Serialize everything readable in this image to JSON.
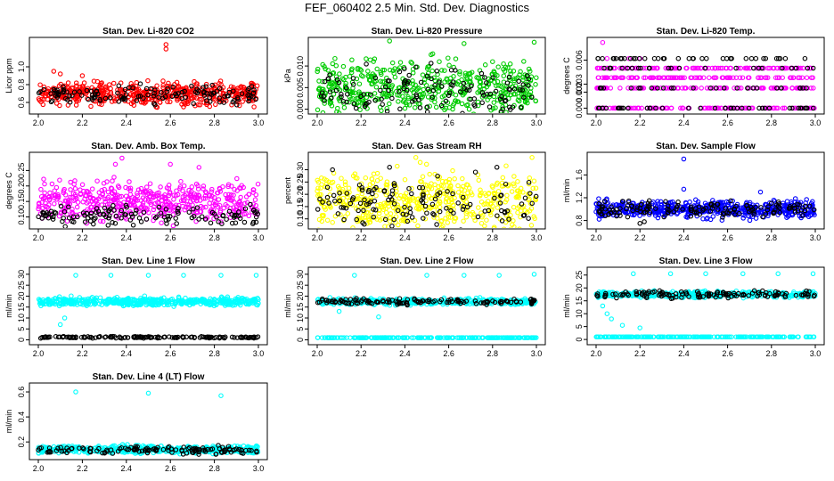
{
  "figure_title": "FEF_060402  2.5 Min. Std. Dev. Diagnostics",
  "colors": {
    "red": "#ff0000",
    "green": "#00cc00",
    "magenta": "#ff00ff",
    "yellow": "#ffff00",
    "blue": "#0000ff",
    "cyan": "#00ffff",
    "black": "#000000"
  },
  "chart_data": [
    {
      "type": "scatter",
      "title": "Stan. Dev. Li-820 CO2",
      "ylabel": "Licor ppm",
      "xlim": [
        2.0,
        3.0
      ],
      "ylim": [
        0.5,
        1.3
      ],
      "xticks": [
        "2.0",
        "2.2",
        "2.4",
        "2.6",
        "2.8",
        "3.0"
      ],
      "yticks": [
        {
          "v": 0.6,
          "t": "0.6"
        },
        {
          "v": 0.8,
          "t": "0.8"
        },
        {
          "v": 1.0,
          "t": "1.0"
        }
      ],
      "series": [
        {
          "color": "red",
          "base": 0.7,
          "spread": 0.06,
          "n": 500,
          "outliers": [
            [
              2.58,
              1.25
            ],
            [
              2.58,
              1.2
            ],
            [
              2.07,
              0.95
            ],
            [
              2.1,
              0.92
            ],
            [
              2.2,
              0.9
            ],
            [
              2.98,
              0.55
            ],
            [
              2.66,
              0.55
            ]
          ]
        },
        {
          "color": "black",
          "base": 0.68,
          "spread": 0.05,
          "n": 130,
          "outliers": [
            [
              2.97,
              0.78
            ],
            [
              2.98,
              0.74
            ]
          ]
        }
      ]
    },
    {
      "type": "scatter",
      "title": "Stan. Dev. Li-820 Pressure",
      "ylabel": "kPa",
      "xlim": [
        2.0,
        3.0
      ],
      "ylim": [
        -0.0005,
        0.016
      ],
      "xticks": [
        "2.0",
        "2.2",
        "2.4",
        "2.6",
        "2.8",
        "3.0"
      ],
      "yticks": [
        {
          "v": 0.0,
          "t": "0.000"
        },
        {
          "v": 0.005,
          "t": "0.005"
        },
        {
          "v": 0.01,
          "t": "0.010"
        }
      ],
      "series": [
        {
          "color": "green",
          "base": 0.005,
          "spread": 0.003,
          "n": 500,
          "outliers": [
            [
              2.33,
              0.0158
            ],
            [
              2.67,
              0.0152
            ],
            [
              2.99,
              0.0155
            ],
            [
              2.8,
              0.011
            ],
            [
              2.85,
              0.0105
            ]
          ]
        },
        {
          "color": "black",
          "base": 0.004,
          "spread": 0.003,
          "n": 130,
          "outliers": []
        }
      ]
    },
    {
      "type": "scatter",
      "title": "Stan. Dev. Li-820 Temp.",
      "ylabel": "degrees C",
      "xlim": [
        2.0,
        3.0
      ],
      "ylim": [
        -0.0004,
        0.0085
      ],
      "xticks": [
        "2.0",
        "2.2",
        "2.4",
        "2.6",
        "2.8",
        "3.0"
      ],
      "yticks": [
        {
          "v": 0.0,
          "t": "0.000"
        },
        {
          "v": 0.002,
          "t": "0.002"
        },
        {
          "v": 0.003,
          "t": "0.003"
        },
        {
          "v": 0.006,
          "t": "0.006"
        }
      ],
      "levels": true,
      "series": [
        {
          "color": "magenta",
          "levels": [
            0.0,
            0.0025,
            0.0038,
            0.005
          ],
          "n": 420,
          "outliers": [
            [
              2.03,
              0.0082
            ],
            [
              2.05,
              0.0062
            ],
            [
              2.15,
              0.0062
            ],
            [
              2.2,
              0.0062
            ]
          ]
        },
        {
          "color": "black",
          "levels": [
            0.0,
            0.0025,
            0.005,
            0.0062
          ],
          "n": 130,
          "outliers": []
        }
      ]
    },
    {
      "type": "scatter",
      "title": "Stan. Dev. Amb. Box Temp.",
      "ylabel": "degrees C",
      "xlim": [
        2.0,
        3.0
      ],
      "ylim": [
        0.07,
        0.3
      ],
      "xticks": [
        "2.0",
        "2.2",
        "2.4",
        "2.6",
        "2.8",
        "3.0"
      ],
      "yticks": [
        {
          "v": 0.1,
          "t": "0.10"
        },
        {
          "v": 0.15,
          "t": "0.15"
        },
        {
          "v": 0.2,
          "t": "0.20"
        },
        {
          "v": 0.25,
          "t": "0.25"
        }
      ],
      "series": [
        {
          "color": "magenta",
          "base": 0.15,
          "spread": 0.03,
          "n": 500,
          "outliers": [
            [
              2.38,
              0.29
            ],
            [
              2.35,
              0.27
            ],
            [
              2.6,
              0.27
            ],
            [
              2.73,
              0.26
            ]
          ]
        },
        {
          "color": "black",
          "base": 0.105,
          "spread": 0.015,
          "n": 130,
          "outliers": []
        }
      ]
    },
    {
      "type": "scatter",
      "title": "Stan. Dev. Gas Stream RH",
      "ylabel": "percent",
      "xlim": [
        2.0,
        3.0
      ],
      "ylim": [
        0.07,
        0.36
      ],
      "xticks": [
        "2.0",
        "2.2",
        "2.4",
        "2.6",
        "2.8",
        "3.0"
      ],
      "yticks": [
        {
          "v": 0.1,
          "t": "0.10"
        },
        {
          "v": 0.15,
          "t": "0.15"
        },
        {
          "v": 0.2,
          "t": "0.20"
        },
        {
          "v": 0.25,
          "t": "0.25"
        },
        {
          "v": 0.3,
          "t": "0.30"
        }
      ],
      "series": [
        {
          "color": "yellow",
          "base": 0.17,
          "spread": 0.06,
          "n": 500,
          "outliers": [
            [
              2.45,
              0.35
            ],
            [
              2.98,
              0.35
            ],
            [
              2.47,
              0.33
            ]
          ]
        },
        {
          "color": "black",
          "base": 0.16,
          "spread": 0.05,
          "n": 120,
          "outliers": [
            [
              2.07,
              0.3
            ],
            [
              2.82,
              0.31
            ],
            [
              2.33,
              0.31
            ]
          ]
        }
      ]
    },
    {
      "type": "scatter",
      "title": "Stan. Dev. Sample Flow",
      "ylabel": "ml/min",
      "xlim": [
        2.0,
        3.0
      ],
      "ylim": [
        0.7,
        1.95
      ],
      "xticks": [
        "2.0",
        "2.2",
        "2.4",
        "2.6",
        "2.8",
        "3.0"
      ],
      "yticks": [
        {
          "v": 0.8,
          "t": "0.8"
        },
        {
          "v": 1.2,
          "t": "1.2"
        },
        {
          "v": 1.6,
          "t": "1.6"
        }
      ],
      "series": [
        {
          "color": "blue",
          "base": 1.0,
          "spread": 0.07,
          "n": 520,
          "outliers": [
            [
              2.4,
              1.88
            ],
            [
              2.4,
              1.35
            ],
            [
              2.75,
              1.3
            ]
          ]
        },
        {
          "color": "black",
          "base": 1.0,
          "spread": 0.07,
          "n": 140,
          "outliers": [
            [
              2.2,
              0.75
            ],
            [
              2.22,
              0.78
            ]
          ]
        }
      ]
    },
    {
      "type": "scatter",
      "title": "Stan. Dev. Line 1 Flow",
      "ylabel": "ml/min",
      "xlim": [
        2.0,
        3.0
      ],
      "ylim": [
        -1,
        32
      ],
      "xticks": [
        "2.0",
        "2.2",
        "2.4",
        "2.6",
        "2.8",
        "3.0"
      ],
      "yticks": [
        {
          "v": 0,
          "t": "0"
        },
        {
          "v": 5,
          "t": "5"
        },
        {
          "v": 10,
          "t": "10"
        },
        {
          "v": 15,
          "t": "15"
        },
        {
          "v": 20,
          "t": "20"
        },
        {
          "v": 25,
          "t": "25"
        },
        {
          "v": 30,
          "t": "30"
        }
      ],
      "series": [
        {
          "color": "cyan",
          "base": 17.5,
          "spread": 0.9,
          "n": 520,
          "outliers": [
            [
              2.17,
              29.5
            ],
            [
              2.33,
              29.5
            ],
            [
              2.5,
              29.5
            ],
            [
              2.66,
              29.5
            ],
            [
              2.83,
              29.5
            ],
            [
              2.99,
              29.5
            ],
            [
              2.1,
              7
            ],
            [
              2.12,
              10
            ]
          ]
        },
        {
          "color": "black",
          "base": 1.2,
          "spread": 0.2,
          "n": 150,
          "outliers": []
        }
      ]
    },
    {
      "type": "scatter",
      "title": "Stan. Dev. Line 2 Flow",
      "ylabel": "ml/min",
      "xlim": [
        2.0,
        3.0
      ],
      "ylim": [
        -1,
        32
      ],
      "xticks": [
        "2.0",
        "2.2",
        "2.4",
        "2.6",
        "2.8",
        "3.0"
      ],
      "yticks": [
        {
          "v": 0,
          "t": "0"
        },
        {
          "v": 5,
          "t": "5"
        },
        {
          "v": 10,
          "t": "10"
        },
        {
          "v": 15,
          "t": "15"
        },
        {
          "v": 20,
          "t": "20"
        },
        {
          "v": 25,
          "t": "25"
        },
        {
          "v": 30,
          "t": "30"
        }
      ],
      "series": [
        {
          "color": "cyan",
          "base": 17.5,
          "spread": 0.7,
          "n": 400,
          "flat": 1.0,
          "outliers": [
            [
              2.17,
              29.5
            ],
            [
              2.5,
              29.5
            ],
            [
              2.67,
              29.5
            ],
            [
              2.83,
              29.5
            ],
            [
              2.99,
              30
            ],
            [
              2.28,
              10.5
            ],
            [
              2.1,
              13
            ]
          ]
        },
        {
          "color": "black",
          "base": 17.5,
          "spread": 0.6,
          "n": 130,
          "outliers": []
        }
      ]
    },
    {
      "type": "scatter",
      "title": "Stan. Dev. Line 3 Flow",
      "ylabel": "ml/min",
      "xlim": [
        2.0,
        3.0
      ],
      "ylim": [
        -1,
        27
      ],
      "xticks": [
        "2.0",
        "2.2",
        "2.4",
        "2.6",
        "2.8",
        "3.0"
      ],
      "yticks": [
        {
          "v": 0,
          "t": "0"
        },
        {
          "v": 5,
          "t": "5"
        },
        {
          "v": 10,
          "t": "10"
        },
        {
          "v": 15,
          "t": "15"
        },
        {
          "v": 20,
          "t": "20"
        },
        {
          "v": 25,
          "t": "25"
        }
      ],
      "series": [
        {
          "color": "cyan",
          "base": 17.5,
          "spread": 0.6,
          "n": 400,
          "flat": 1.0,
          "outliers": [
            [
              2.03,
              13
            ],
            [
              2.05,
              10
            ],
            [
              2.07,
              8
            ],
            [
              2.12,
              5.5
            ],
            [
              2.17,
              25.5
            ],
            [
              2.34,
              25.5
            ],
            [
              2.5,
              25.5
            ],
            [
              2.67,
              25.5
            ],
            [
              2.83,
              25.5
            ],
            [
              2.99,
              25.5
            ],
            [
              2.2,
              4.5
            ]
          ]
        },
        {
          "color": "black",
          "base": 17.5,
          "spread": 0.6,
          "n": 130,
          "outliers": []
        }
      ]
    },
    {
      "type": "scatter",
      "title": "Stan. Dev. Line 4 (LT) Flow",
      "ylabel": "ml/min",
      "xlim": [
        2.0,
        3.0
      ],
      "ylim": [
        0.08,
        0.65
      ],
      "xticks": [
        "2.0",
        "2.2",
        "2.4",
        "2.6",
        "2.8",
        "3.0"
      ],
      "yticks": [
        {
          "v": 0.2,
          "t": "0.2"
        },
        {
          "v": 0.4,
          "t": "0.4"
        },
        {
          "v": 0.6,
          "t": "0.6"
        }
      ],
      "series": [
        {
          "color": "cyan",
          "base": 0.14,
          "spread": 0.015,
          "n": 500,
          "outliers": [
            [
              2.17,
              0.6
            ],
            [
              2.5,
              0.59
            ],
            [
              2.83,
              0.57
            ]
          ]
        },
        {
          "color": "black",
          "base": 0.135,
          "spread": 0.015,
          "n": 130,
          "outliers": []
        }
      ]
    }
  ]
}
